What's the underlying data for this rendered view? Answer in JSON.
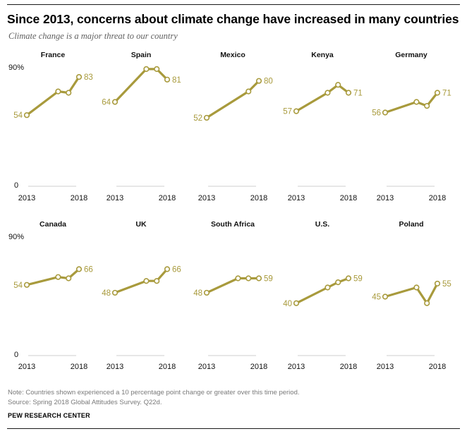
{
  "title": "Since 2013, concerns about climate change have increased in many countries",
  "subtitle": "Climate change is a major threat to our country",
  "footer": {
    "note": "Note: Countries shown experienced a 10 percentage point change or greater over this time period.",
    "source": "Source: Spring 2018 Global Attitudes Survey. Q22d.",
    "brand": "PEW RESEARCH CENTER"
  },
  "colors": {
    "line": "#a89a3c",
    "label": "#a89a3c",
    "baseline": "#cfcfcf"
  },
  "chart_data": {
    "type": "line",
    "x": [
      2013,
      2015,
      2016,
      2017,
      2018
    ],
    "ylim": [
      0,
      90
    ],
    "y_tick_labels": [
      "0",
      "90%"
    ],
    "x_tick_labels": [
      "2013",
      "2018"
    ],
    "panels": [
      {
        "country": "France",
        "points": [
          [
            2013,
            54
          ],
          [
            2016,
            72
          ],
          [
            2017,
            71
          ],
          [
            2018,
            83
          ]
        ],
        "first_label": "54",
        "last_label": "83"
      },
      {
        "country": "Spain",
        "points": [
          [
            2013,
            64
          ],
          [
            2016,
            89
          ],
          [
            2017,
            89
          ],
          [
            2018,
            81
          ]
        ],
        "first_label": "64",
        "last_label": "81"
      },
      {
        "country": "Mexico",
        "points": [
          [
            2013,
            52
          ],
          [
            2017,
            72
          ],
          [
            2018,
            80
          ]
        ],
        "first_label": "52",
        "last_label": "80"
      },
      {
        "country": "Kenya",
        "points": [
          [
            2013,
            57
          ],
          [
            2016,
            71
          ],
          [
            2017,
            77
          ],
          [
            2018,
            71
          ]
        ],
        "first_label": "57",
        "last_label": "71"
      },
      {
        "country": "Germany",
        "points": [
          [
            2013,
            56
          ],
          [
            2016,
            64
          ],
          [
            2017,
            61
          ],
          [
            2018,
            71
          ]
        ],
        "first_label": "56",
        "last_label": "71"
      },
      {
        "country": "Canada",
        "points": [
          [
            2013,
            54
          ],
          [
            2016,
            60
          ],
          [
            2017,
            59
          ],
          [
            2018,
            66
          ]
        ],
        "first_label": "54",
        "last_label": "66"
      },
      {
        "country": "UK",
        "points": [
          [
            2013,
            48
          ],
          [
            2016,
            57
          ],
          [
            2017,
            57
          ],
          [
            2018,
            66
          ]
        ],
        "first_label": "48",
        "last_label": "66"
      },
      {
        "country": "South Africa",
        "points": [
          [
            2013,
            48
          ],
          [
            2016,
            59
          ],
          [
            2017,
            59
          ],
          [
            2018,
            59
          ]
        ],
        "first_label": "48",
        "last_label": "59"
      },
      {
        "country": "U.S.",
        "points": [
          [
            2013,
            40
          ],
          [
            2016,
            52
          ],
          [
            2017,
            56
          ],
          [
            2018,
            59
          ]
        ],
        "first_label": "40",
        "last_label": "59"
      },
      {
        "country": "Poland",
        "points": [
          [
            2013,
            45
          ],
          [
            2016,
            52
          ],
          [
            2017,
            40
          ],
          [
            2018,
            55
          ]
        ],
        "first_label": "45",
        "last_label": "55"
      }
    ]
  }
}
